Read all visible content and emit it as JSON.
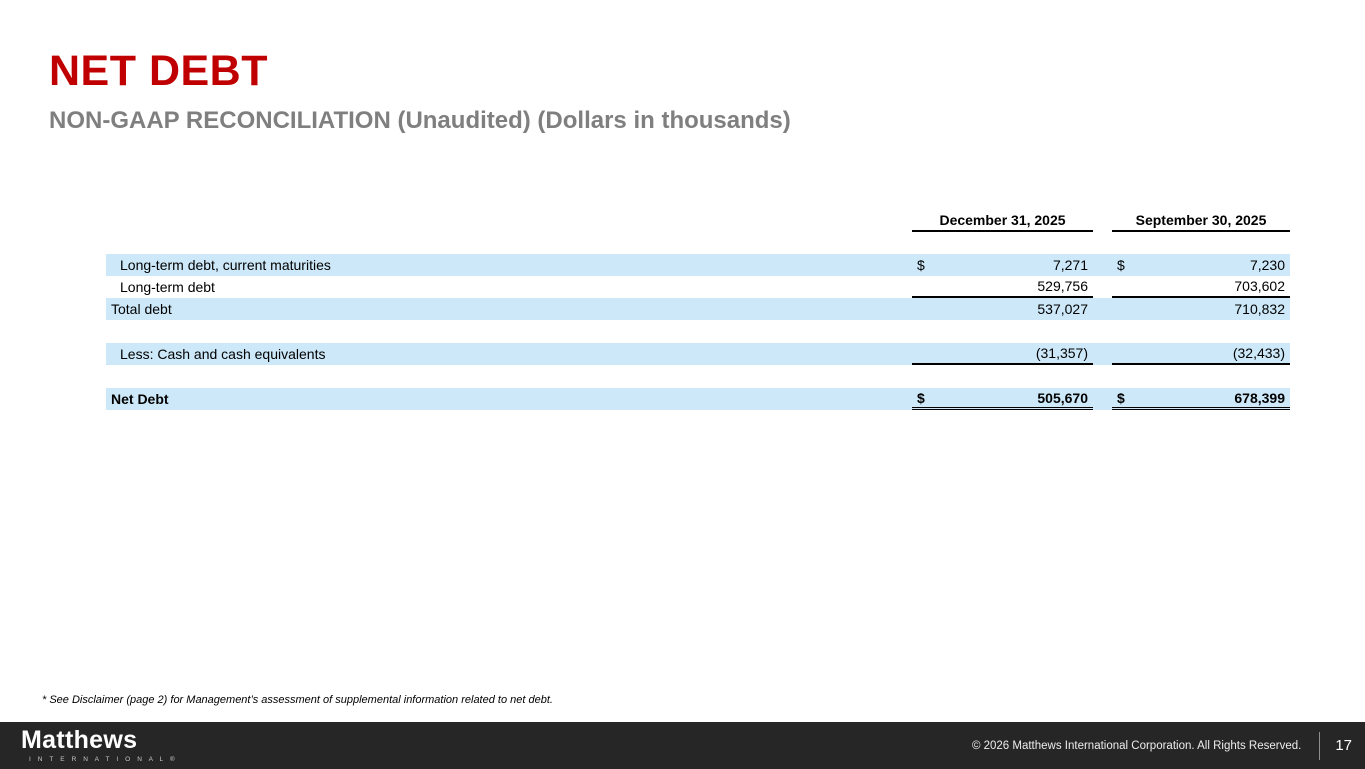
{
  "slide": {
    "title": "NET DEBT",
    "subtitle": "NON-GAAP RECONCILIATION (Unaudited) (Dollars in thousands)",
    "footnote": "* See Disclaimer (page 2) for Management’s assessment of supplemental information related to net debt."
  },
  "table": {
    "columns": [
      "December 31, 2025",
      "September 30, 2025"
    ],
    "rows": [
      {
        "label": "Long-term debt, current maturities",
        "dollar": "$",
        "dec": "7,271",
        "sep": "7,230"
      },
      {
        "label": "Long-term debt",
        "dec": "529,756",
        "sep": "703,602"
      },
      {
        "label": "Total debt",
        "dec": "537,027",
        "sep": "710,832"
      },
      {
        "label": "Less: Cash and cash equivalents",
        "dec": "(31,357)",
        "sep": "(32,433)"
      },
      {
        "label": "Net Debt",
        "dollar": "$",
        "dec": "505,670",
        "sep": "678,399"
      }
    ]
  },
  "footer": {
    "logo": "Matthews",
    "logo_sub": "I N T E R N A T I O N A L ®",
    "copyright": "© 2026 Matthews International Corporation. All Rights Reserved.",
    "page": "17"
  },
  "colors": {
    "title_red": "#c00000",
    "subtitle_gray": "#7f7f7f",
    "row_highlight_blue": "#cde9f9",
    "footer_background": "#262626"
  }
}
